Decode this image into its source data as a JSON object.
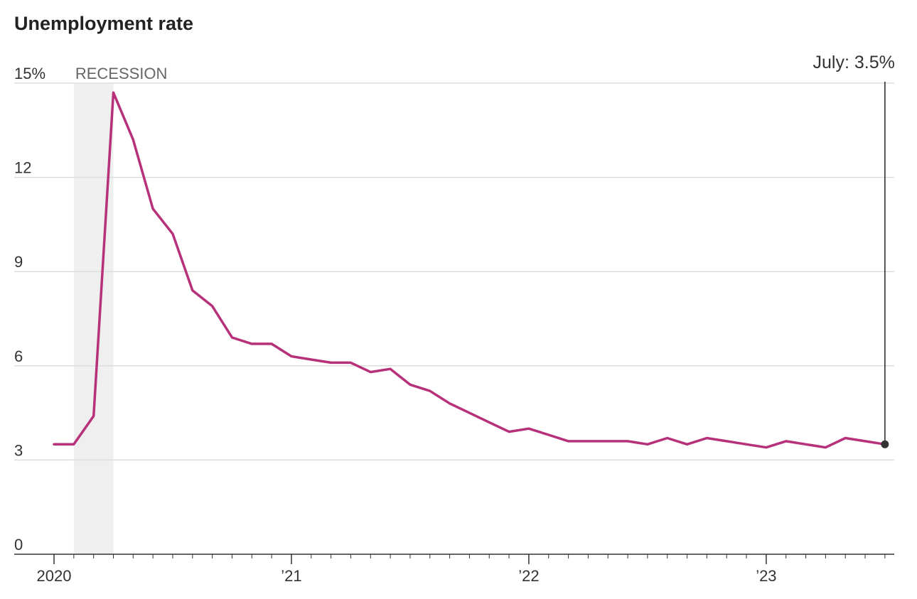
{
  "chart_data": {
    "type": "line",
    "title": "Unemployment rate",
    "xlabel": "",
    "ylabel": "",
    "ylim": [
      0,
      15
    ],
    "y_ticks": [
      0,
      3,
      6,
      9,
      12,
      15
    ],
    "y_tick_labels": [
      "0",
      "3",
      "6",
      "9",
      "12",
      "15%"
    ],
    "x_ticks": [
      "2020-01",
      "2021-01",
      "2022-01",
      "2023-01"
    ],
    "x_tick_labels": [
      "2020",
      "’21",
      "’22",
      "’23"
    ],
    "grid": true,
    "recession": {
      "label": "RECESSION",
      "start": "2020-02",
      "end": "2020-04"
    },
    "annotation": {
      "label": "July: 3.5%",
      "x": "2023-07",
      "y": 3.5
    },
    "series": [
      {
        "color": "#b7307a",
        "x": [
          "2020-01",
          "2020-02",
          "2020-03",
          "2020-04",
          "2020-05",
          "2020-06",
          "2020-07",
          "2020-08",
          "2020-09",
          "2020-10",
          "2020-11",
          "2020-12",
          "2021-01",
          "2021-02",
          "2021-03",
          "2021-04",
          "2021-05",
          "2021-06",
          "2021-07",
          "2021-08",
          "2021-09",
          "2021-10",
          "2021-11",
          "2021-12",
          "2022-01",
          "2022-02",
          "2022-03",
          "2022-04",
          "2022-05",
          "2022-06",
          "2022-07",
          "2022-08",
          "2022-09",
          "2022-10",
          "2022-11",
          "2022-12",
          "2023-01",
          "2023-02",
          "2023-03",
          "2023-04",
          "2023-05",
          "2023-06",
          "2023-07"
        ],
        "values": [
          3.5,
          3.5,
          4.4,
          14.7,
          13.2,
          11.0,
          10.2,
          8.4,
          7.9,
          6.9,
          6.7,
          6.7,
          6.3,
          6.2,
          6.1,
          6.1,
          5.8,
          5.9,
          5.4,
          5.2,
          4.8,
          4.5,
          4.2,
          3.9,
          4.0,
          3.8,
          3.6,
          3.6,
          3.6,
          3.6,
          3.5,
          3.7,
          3.5,
          3.7,
          3.6,
          3.5,
          3.4,
          3.6,
          3.5,
          3.4,
          3.7,
          3.6,
          3.5
        ]
      }
    ]
  }
}
